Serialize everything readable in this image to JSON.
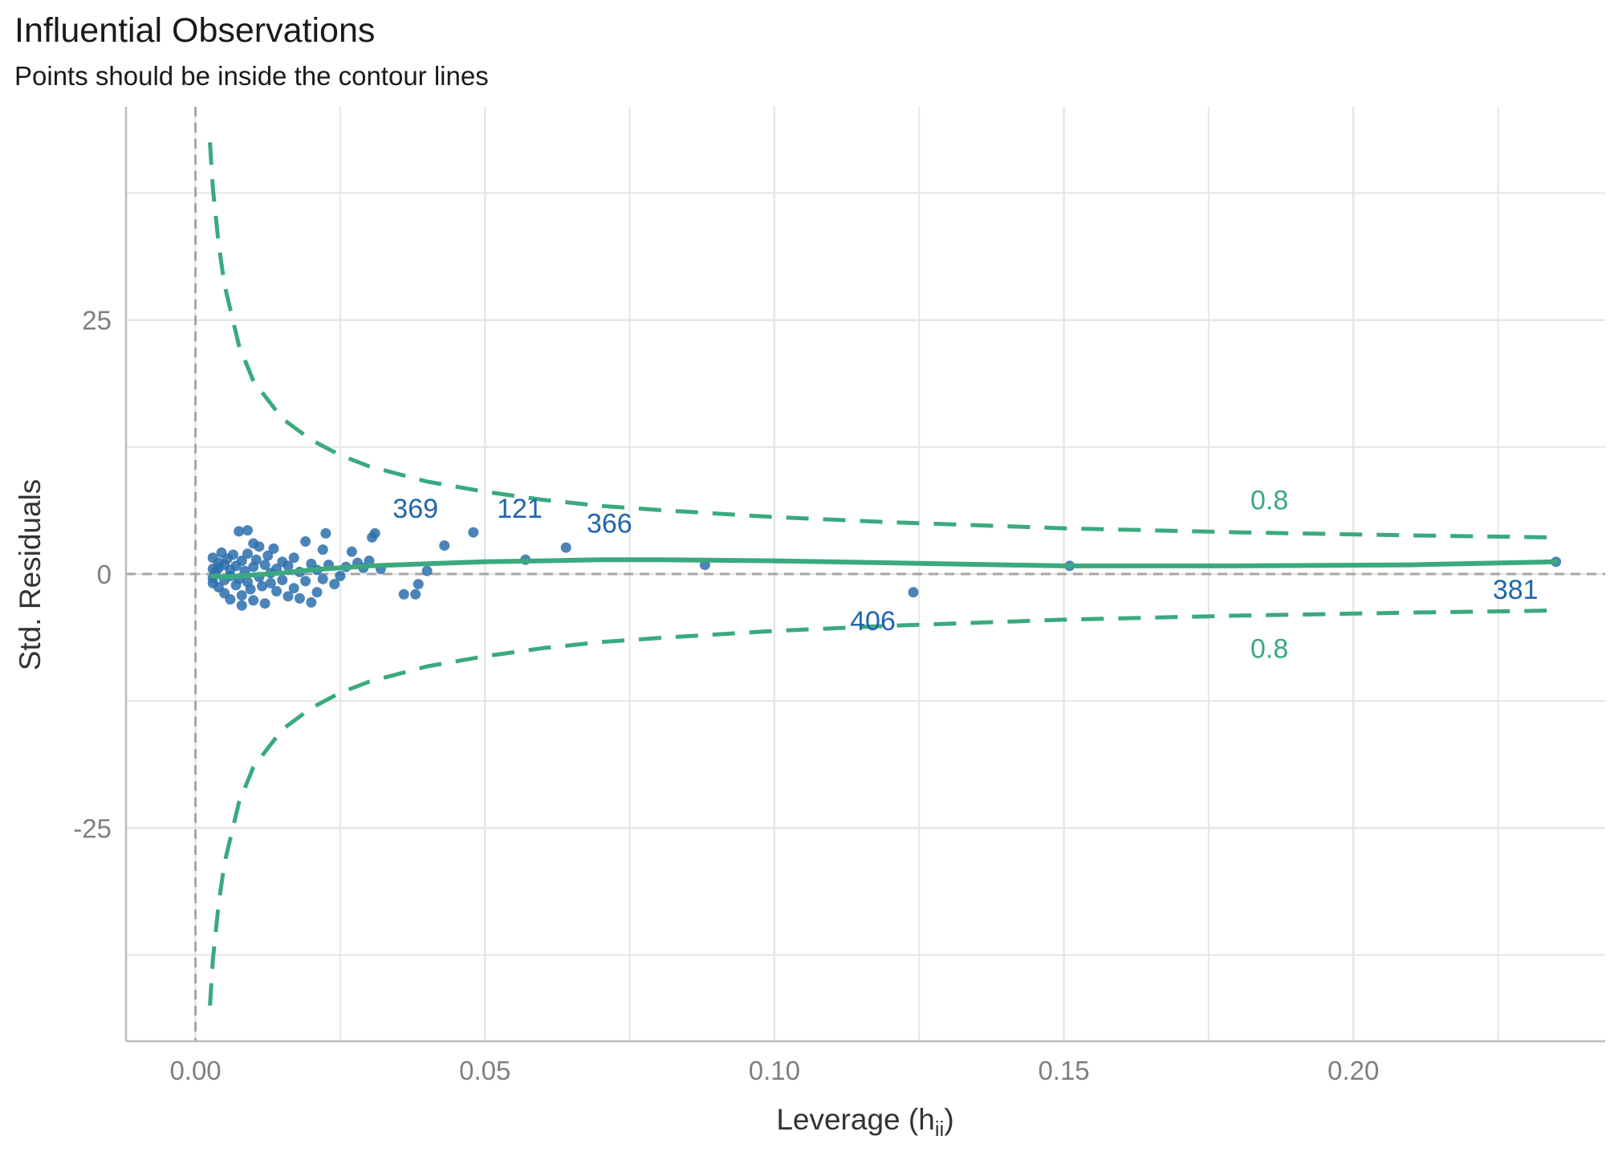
{
  "colors": {
    "points": "#2b6ead",
    "contour": "#3aaa7e",
    "grid": "#e6e6e6",
    "refline": "#a6a6a6",
    "axis_text": "#7f7f7f"
  },
  "chart_data": {
    "type": "scatter",
    "title": "Influential Observations",
    "subtitle": "Points should be inside the contour lines",
    "xlabel_main": "Leverage (h",
    "xlabel_sub": "ii",
    "xlabel_close": ")",
    "ylabel": "Std. Residuals",
    "xlim": [
      -0.012,
      0.2435
    ],
    "ylim": [
      -46,
      46
    ],
    "x_ticks": [
      0.0,
      0.05,
      0.1,
      0.15,
      0.2
    ],
    "x_tick_labels": [
      "0.00",
      "0.05",
      "0.10",
      "0.15",
      "0.20"
    ],
    "y_ticks": [
      25,
      0,
      -25
    ],
    "y_tick_labels": [
      "25",
      "0",
      "-25"
    ],
    "grid": true,
    "reference_lines": {
      "x": 0,
      "y": 0
    },
    "points": [
      [
        0.003,
        0.5
      ],
      [
        0.003,
        -0.4
      ],
      [
        0.003,
        1.6
      ],
      [
        0.003,
        -0.9
      ],
      [
        0.0035,
        0.2
      ],
      [
        0.004,
        1.1
      ],
      [
        0.004,
        -1.3
      ],
      [
        0.004,
        0.6
      ],
      [
        0.0045,
        2.1
      ],
      [
        0.005,
        -0.6
      ],
      [
        0.005,
        0.9
      ],
      [
        0.005,
        -1.9
      ],
      [
        0.0055,
        1.5
      ],
      [
        0.006,
        -0.2
      ],
      [
        0.006,
        -2.5
      ],
      [
        0.006,
        0.4
      ],
      [
        0.0065,
        1.9
      ],
      [
        0.007,
        -1.1
      ],
      [
        0.007,
        0.8
      ],
      [
        0.0075,
        4.2
      ],
      [
        0.0075,
        -0.5
      ],
      [
        0.008,
        1.3
      ],
      [
        0.008,
        -2.1
      ],
      [
        0.008,
        -3.1
      ],
      [
        0.0085,
        0.3
      ],
      [
        0.009,
        4.3
      ],
      [
        0.009,
        -0.8
      ],
      [
        0.009,
        2.0
      ],
      [
        0.0095,
        -1.5
      ],
      [
        0.01,
        0.7
      ],
      [
        0.01,
        3.0
      ],
      [
        0.01,
        -2.6
      ],
      [
        0.0105,
        1.4
      ],
      [
        0.011,
        -0.3
      ],
      [
        0.011,
        2.7
      ],
      [
        0.0115,
        -1.2
      ],
      [
        0.012,
        0.9
      ],
      [
        0.012,
        -2.9
      ],
      [
        0.0125,
        1.8
      ],
      [
        0.013,
        0.1
      ],
      [
        0.013,
        -0.9
      ],
      [
        0.0135,
        2.5
      ],
      [
        0.014,
        -1.7
      ],
      [
        0.014,
        0.5
      ],
      [
        0.015,
        1.2
      ],
      [
        0.015,
        -0.6
      ],
      [
        0.016,
        -2.2
      ],
      [
        0.016,
        0.8
      ],
      [
        0.017,
        1.6
      ],
      [
        0.017,
        -1.4
      ],
      [
        0.018,
        0.2
      ],
      [
        0.018,
        -2.4
      ],
      [
        0.019,
        3.2
      ],
      [
        0.019,
        -0.7
      ],
      [
        0.02,
        1.0
      ],
      [
        0.02,
        -2.8
      ],
      [
        0.021,
        0.4
      ],
      [
        0.021,
        -1.8
      ],
      [
        0.022,
        2.4
      ],
      [
        0.022,
        -0.5
      ],
      [
        0.0225,
        4.0
      ],
      [
        0.023,
        0.9
      ],
      [
        0.024,
        -1.0
      ],
      [
        0.025,
        -0.2
      ],
      [
        0.026,
        0.7
      ],
      [
        0.027,
        2.2
      ],
      [
        0.028,
        1.1
      ],
      [
        0.029,
        0.6
      ],
      [
        0.03,
        1.3
      ],
      [
        0.0305,
        3.6
      ],
      [
        0.031,
        4.0
      ],
      [
        0.032,
        0.5
      ],
      [
        0.036,
        -2.0
      ],
      [
        0.038,
        -2.0
      ],
      [
        0.0385,
        -1.0
      ],
      [
        0.04,
        0.3
      ],
      [
        0.043,
        2.8
      ],
      [
        0.048,
        4.1
      ],
      [
        0.057,
        1.4
      ],
      [
        0.064,
        2.6
      ],
      [
        0.088,
        0.9
      ],
      [
        0.124,
        -1.8
      ],
      [
        0.151,
        0.8
      ],
      [
        0.235,
        1.2
      ]
    ],
    "point_labels": [
      {
        "id": "369",
        "x": 0.038,
        "y": 6.5
      },
      {
        "id": "121",
        "x": 0.056,
        "y": 6.5
      },
      {
        "id": "366",
        "x": 0.0715,
        "y": 5.0
      },
      {
        "id": "406",
        "x": 0.117,
        "y": -4.6
      },
      {
        "id": "381",
        "x": 0.228,
        "y": -1.5
      }
    ],
    "smooth_line": [
      [
        0.003,
        -0.2
      ],
      [
        0.005,
        -0.3
      ],
      [
        0.01,
        -0.1
      ],
      [
        0.015,
        0.1
      ],
      [
        0.02,
        0.4
      ],
      [
        0.025,
        0.6
      ],
      [
        0.03,
        0.8
      ],
      [
        0.04,
        1.0
      ],
      [
        0.05,
        1.2
      ],
      [
        0.06,
        1.3
      ],
      [
        0.07,
        1.4
      ],
      [
        0.08,
        1.4
      ],
      [
        0.1,
        1.3
      ],
      [
        0.12,
        1.1
      ],
      [
        0.15,
        0.8
      ],
      [
        0.18,
        0.8
      ],
      [
        0.21,
        0.9
      ],
      [
        0.235,
        1.2
      ]
    ],
    "contour_level_label": "0.8",
    "contour_label_positions": [
      {
        "x": 0.1855,
        "y": 7.3
      },
      {
        "x": 0.1855,
        "y": -7.3
      }
    ],
    "contour_upper": [
      [
        0.0025,
        42.5
      ],
      [
        0.003,
        38.0
      ],
      [
        0.004,
        32.5
      ],
      [
        0.005,
        28.5
      ],
      [
        0.0075,
        22.5
      ],
      [
        0.01,
        19.0
      ],
      [
        0.015,
        15.3
      ],
      [
        0.02,
        13.2
      ],
      [
        0.025,
        11.7
      ],
      [
        0.03,
        10.6
      ],
      [
        0.04,
        9.1
      ],
      [
        0.05,
        8.1
      ],
      [
        0.06,
        7.3
      ],
      [
        0.07,
        6.7
      ],
      [
        0.08,
        6.3
      ],
      [
        0.1,
        5.6
      ],
      [
        0.12,
        5.1
      ],
      [
        0.15,
        4.5
      ],
      [
        0.18,
        4.1
      ],
      [
        0.21,
        3.8
      ],
      [
        0.235,
        3.6
      ]
    ],
    "contour_lower": [
      [
        0.0025,
        -42.5
      ],
      [
        0.003,
        -38.0
      ],
      [
        0.004,
        -32.5
      ],
      [
        0.005,
        -28.5
      ],
      [
        0.0075,
        -22.5
      ],
      [
        0.01,
        -19.0
      ],
      [
        0.015,
        -15.3
      ],
      [
        0.02,
        -13.2
      ],
      [
        0.025,
        -11.7
      ],
      [
        0.03,
        -10.6
      ],
      [
        0.04,
        -9.1
      ],
      [
        0.05,
        -8.1
      ],
      [
        0.06,
        -7.3
      ],
      [
        0.07,
        -6.7
      ],
      [
        0.08,
        -6.3
      ],
      [
        0.1,
        -5.6
      ],
      [
        0.12,
        -5.1
      ],
      [
        0.15,
        -4.5
      ],
      [
        0.18,
        -4.1
      ],
      [
        0.21,
        -3.8
      ],
      [
        0.235,
        -3.6
      ]
    ]
  }
}
